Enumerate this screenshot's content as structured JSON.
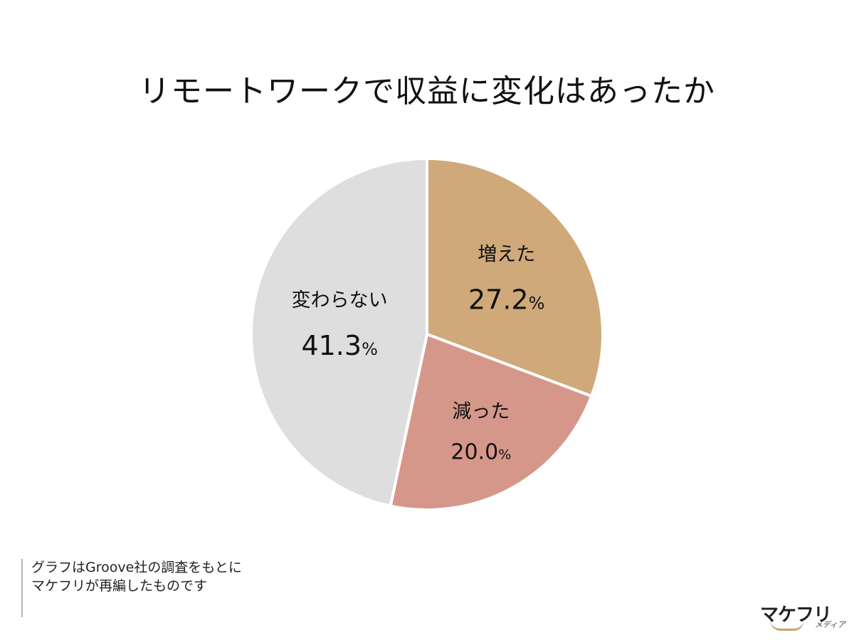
{
  "chart_data": {
    "type": "pie",
    "title": "リモートワークで収益に変化はあったか",
    "slices": [
      {
        "label": "増えた",
        "value": 27.2,
        "display": "27.2",
        "unit": "%",
        "color": "#cfa97a"
      },
      {
        "label": "減った",
        "value": 20.0,
        "display": "20.0",
        "unit": "%",
        "color": "#d6978b"
      },
      {
        "label": "変わらない",
        "value": 41.3,
        "display": "41.3",
        "unit": "%",
        "color": "#dedede"
      }
    ],
    "start": "12 o'clock",
    "direction": "clockwise"
  },
  "footnote": {
    "line1": "グラフはGroove社の調査をもとに",
    "line2": "マケフリが再編したものです"
  },
  "logo": {
    "main": "マケフリ",
    "sub": "メディア",
    "accent_color": "#c9a06a"
  }
}
